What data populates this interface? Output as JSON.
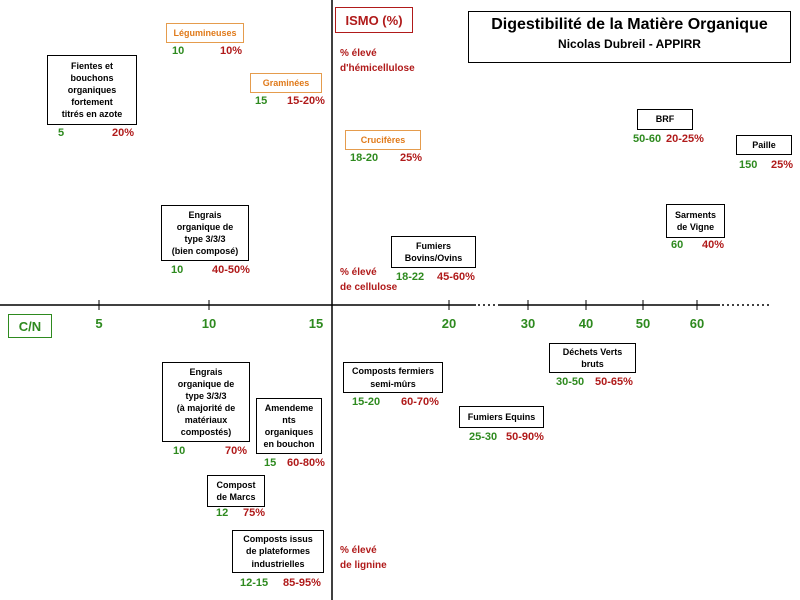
{
  "title": {
    "main": "Digestibilité de la Matière Organique",
    "subtitle": "Nicolas Dubreil - APPIRR"
  },
  "axes": {
    "y_label": "ISMO (%)",
    "x_label": "C/N",
    "ticks": [
      "5",
      "10",
      "15",
      "20",
      "30",
      "40",
      "50",
      "60"
    ]
  },
  "notes": {
    "hemicellulose": "% élevé\nd'hémicellulose",
    "cellulose": "% élevé\nde cellulose",
    "lignine": "% élevé\nde lignine"
  },
  "items": {
    "legumineuses": {
      "label": "Légumineuses",
      "cn": "10",
      "ismo": "10%"
    },
    "graminees": {
      "label": "Graminées",
      "cn": "15",
      "ismo": "15-20%"
    },
    "cruciferes": {
      "label": "Crucifères",
      "cn": "18-20",
      "ismo": "25%"
    },
    "fientes": {
      "label": "Fientes et\nbouchons\norganiques\nfortement\ntitrés en azote",
      "cn": "5",
      "ismo": "20%"
    },
    "engrais_bien": {
      "label": "Engrais\norganique de\ntype 3/3/3\n(bien composé)",
      "cn": "10",
      "ismo": "40-50%"
    },
    "fumiers_bovins": {
      "label": "Fumiers\nBovins/Ovins",
      "cn": "18-22",
      "ismo": "45-60%"
    },
    "brf": {
      "label": "BRF",
      "cn": "50-60",
      "ismo": "20-25%"
    },
    "paille": {
      "label": "Paille",
      "cn": "150",
      "ismo": "25%"
    },
    "sarments": {
      "label": "Sarments\nde Vigne",
      "cn": "60",
      "ismo": "40%"
    },
    "engrais_compost": {
      "label": "Engrais\norganique de\ntype 3/3/3\n(à majorité de\nmatériaux\ncompostés)",
      "cn": "10",
      "ismo": "70%"
    },
    "amendements": {
      "label": "Amendeme\nnts\norganiques\nen bouchon",
      "cn": "15",
      "ismo": "60-80%"
    },
    "compost_marcs": {
      "label": "Compost\nde Marcs",
      "cn": "12",
      "ismo": "75%"
    },
    "composts_industriels": {
      "label": "Composts issus\nde plateformes\nindustrielles",
      "cn": "12-15",
      "ismo": "85-95%"
    },
    "composts_fermiers": {
      "label": "Composts fermiers\nsemi-mûrs",
      "cn": "15-20",
      "ismo": "60-70%"
    },
    "fumiers_equins": {
      "label": "Fumiers Equins",
      "cn": "25-30",
      "ismo": "50-90%"
    },
    "dechets_verts": {
      "label": "Déchets Verts\nbruts",
      "cn": "30-50",
      "ismo": "50-65%"
    }
  },
  "colors": {
    "green": "#2e8a1f",
    "red": "#b01a1a",
    "orange": "#e07a1a"
  }
}
